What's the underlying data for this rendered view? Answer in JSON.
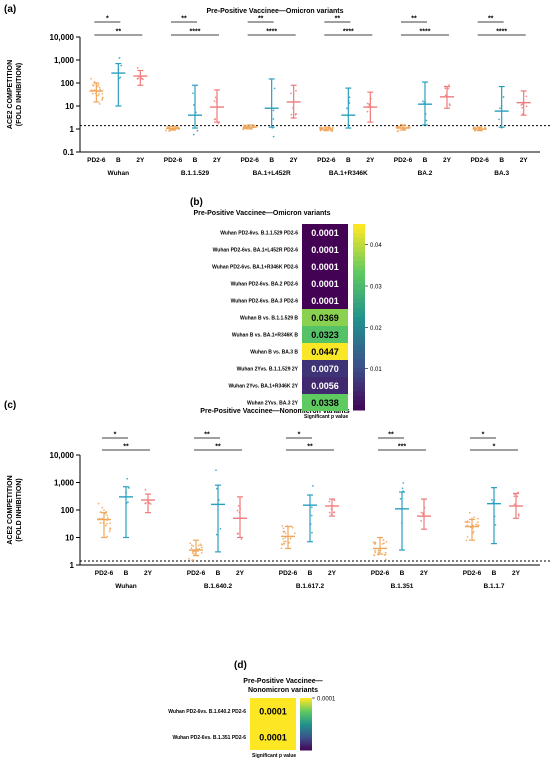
{
  "panels": [
    {
      "label": "(a)",
      "title": "Pre-Positive Vaccinee—Omicron variants"
    },
    {
      "label": "(b)",
      "title": "Pre-Positive Vaccinee—Omicron variants"
    },
    {
      "label": "(c)",
      "title": "Pre-Positive Vaccinee—Nonomicron variants"
    },
    {
      "label": "(d)",
      "title_lines": [
        "Pre-Positive Vaccinee—",
        "Nonomicron variants"
      ]
    }
  ],
  "chart_data": [
    {
      "type": "scatter",
      "panel": "a",
      "ylabel_lines": [
        "ACE2 COMPETITION",
        "(FOLD INHIBITION)"
      ],
      "yscale": "log",
      "ylim": [
        0.1,
        10000
      ],
      "yticks": [
        "0.1",
        "1",
        "10",
        "100",
        "1,000",
        "10,000"
      ],
      "threshold": 1.4,
      "series_labels": [
        "PD2-6",
        "B",
        "2Y"
      ],
      "colors": {
        "PD2-6": "#f0a65a",
        "B": "#2a9fbf",
        "2Y": "#f07a7a"
      },
      "groups": [
        {
          "name": "Wuhan",
          "medians": [
            45,
            270,
            200
          ],
          "lo": [
            15,
            10,
            80
          ],
          "hi": [
            100,
            700,
            350
          ],
          "brackets": [
            {
              "from": 0,
              "to": 1,
              "sig": "*"
            },
            {
              "from": 0,
              "to": 2,
              "sig": "**"
            }
          ]
        },
        {
          "name": "B.1.1.529",
          "medians": [
            1.05,
            4,
            9
          ],
          "lo": [
            0.9,
            1.1,
            2
          ],
          "hi": [
            1.3,
            80,
            50
          ],
          "brackets": [
            {
              "from": 0,
              "to": 1,
              "sig": "**"
            },
            {
              "from": 0,
              "to": 2,
              "sig": "****"
            }
          ]
        },
        {
          "name": "BA.1+L452R",
          "medians": [
            1.2,
            8,
            15
          ],
          "lo": [
            1.0,
            1.2,
            3
          ],
          "hi": [
            1.5,
            150,
            80
          ],
          "brackets": [
            {
              "from": 0,
              "to": 1,
              "sig": "**"
            },
            {
              "from": 0,
              "to": 2,
              "sig": "****"
            }
          ]
        },
        {
          "name": "BA.1+R346K",
          "medians": [
            1.0,
            4,
            9
          ],
          "lo": [
            0.85,
            1.1,
            2
          ],
          "hi": [
            1.2,
            60,
            40
          ],
          "brackets": [
            {
              "from": 0,
              "to": 1,
              "sig": "**"
            },
            {
              "from": 0,
              "to": 2,
              "sig": "****"
            }
          ]
        },
        {
          "name": "BA.2",
          "medians": [
            1.1,
            12,
            25
          ],
          "lo": [
            0.9,
            1.5,
            8
          ],
          "hi": [
            1.5,
            110,
            70
          ],
          "brackets": [
            {
              "from": 0,
              "to": 1,
              "sig": "**"
            },
            {
              "from": 0,
              "to": 2,
              "sig": "****"
            }
          ]
        },
        {
          "name": "BA.3",
          "medians": [
            1.0,
            6,
            14
          ],
          "lo": [
            0.85,
            1.2,
            4
          ],
          "hi": [
            1.2,
            70,
            45
          ],
          "brackets": [
            {
              "from": 0,
              "to": 1,
              "sig": "**"
            },
            {
              "from": 0,
              "to": 2,
              "sig": "****"
            }
          ]
        }
      ]
    },
    {
      "type": "heatmap",
      "panel": "b",
      "xlabel": "Significant p value",
      "rows": [
        {
          "label": "Wuhan PD2-6vs. B.1.1.529 PD2-6",
          "text": "0.0001",
          "value": 0.0001
        },
        {
          "label": "Wuhan PD2-6vs. BA.1+L452R PD2-6",
          "text": "0.0001",
          "value": 0.0001
        },
        {
          "label": "Wuhan PD2-6vs. BA.1+R346K PD2-6",
          "text": "0.0001",
          "value": 0.0001
        },
        {
          "label": "Wuhan PD2-6vs. BA.2 PD2-6",
          "text": "0.0001",
          "value": 0.0001
        },
        {
          "label": "Wuhan PD2-6vs. BA.3 PD2-6",
          "text": "0.0001",
          "value": 0.0001
        },
        {
          "label": "Wuhan B vs. B.1.1.529 B",
          "text": "0.0369",
          "value": 0.0369
        },
        {
          "label": "Wuhan B vs. BA.1+R346K B",
          "text": "0.0323",
          "value": 0.0323
        },
        {
          "label": "Wuhan B vs. BA.3 B",
          "text": "0.0447",
          "value": 0.0447
        },
        {
          "label": "Wuhan 2Yvs. B.1.1.529 2Y",
          "text": "0.0070",
          "value": 0.007
        },
        {
          "label": "Wuhan 2Yvs. BA.1+R346K 2Y",
          "text": "0.0056",
          "value": 0.0056
        },
        {
          "label": "Wuhan 2Yvs. BA.3 2Y",
          "text": "0.0338",
          "value": 0.0338
        }
      ],
      "colorbar": {
        "min": 0,
        "max": 0.045,
        "ticks": [
          "0.04",
          "0.03",
          "0.02",
          "0.01"
        ],
        "tick_values": [
          0.04,
          0.03,
          0.02,
          0.01
        ]
      }
    },
    {
      "type": "scatter",
      "panel": "c",
      "ylabel_lines": [
        "ACE2 COMPETITION",
        "(FOLD INHIBITION)"
      ],
      "yscale": "log",
      "ylim": [
        1,
        10000
      ],
      "yticks": [
        "1",
        "10",
        "100",
        "1,000",
        "10,000"
      ],
      "threshold": 1.4,
      "series_labels": [
        "PD2-6",
        "B",
        "2Y"
      ],
      "colors": {
        "PD2-6": "#f0a65a",
        "B": "#2a9fbf",
        "2Y": "#f07a7a"
      },
      "groups": [
        {
          "name": "Wuhan",
          "medians": [
            45,
            300,
            230
          ],
          "lo": [
            10,
            10,
            80
          ],
          "hi": [
            80,
            700,
            380
          ],
          "brackets": [
            {
              "from": 0,
              "to": 1,
              "sig": "*"
            },
            {
              "from": 0,
              "to": 2,
              "sig": "**"
            }
          ]
        },
        {
          "name": "B.1.640.2",
          "medians": [
            3.5,
            160,
            50
          ],
          "lo": [
            2.2,
            3,
            10
          ],
          "hi": [
            8,
            800,
            300
          ],
          "brackets": [
            {
              "from": 0,
              "to": 1,
              "sig": "**"
            },
            {
              "from": 0,
              "to": 2,
              "sig": "**"
            }
          ]
        },
        {
          "name": "B.1.617.2",
          "medians": [
            11,
            150,
            140
          ],
          "lo": [
            4,
            7,
            60
          ],
          "hi": [
            25,
            350,
            250
          ],
          "brackets": [
            {
              "from": 0,
              "to": 1,
              "sig": "*"
            },
            {
              "from": 0,
              "to": 2,
              "sig": "**"
            }
          ]
        },
        {
          "name": "B.1.351",
          "medians": [
            4,
            110,
            60
          ],
          "lo": [
            2.5,
            3.5,
            20
          ],
          "hi": [
            10,
            450,
            250
          ],
          "brackets": [
            {
              "from": 0,
              "to": 1,
              "sig": "**"
            },
            {
              "from": 0,
              "to": 2,
              "sig": "***"
            }
          ]
        },
        {
          "name": "B.1.1.7",
          "medians": [
            25,
            170,
            140
          ],
          "lo": [
            8,
            6,
            50
          ],
          "hi": [
            45,
            650,
            400
          ],
          "brackets": [
            {
              "from": 0,
              "to": 1,
              "sig": "*"
            },
            {
              "from": 0,
              "to": 2,
              "sig": "*"
            }
          ]
        }
      ]
    },
    {
      "type": "heatmap",
      "panel": "d",
      "xlabel": "Significant p value",
      "rows": [
        {
          "label": "Wuhan PD2-6vs. B.1.640.2 PD2-6",
          "text": "0.0001",
          "value": 0.0001
        },
        {
          "label": "Wuhan PD2-6vs. B.1.351 PD2-6",
          "text": "0.0001",
          "value": 0.0001
        }
      ],
      "colorbar": {
        "min": 0,
        "max": 0.0001,
        "ticks": [
          "0.0001"
        ],
        "tick_values": [
          0.0001
        ]
      }
    }
  ]
}
